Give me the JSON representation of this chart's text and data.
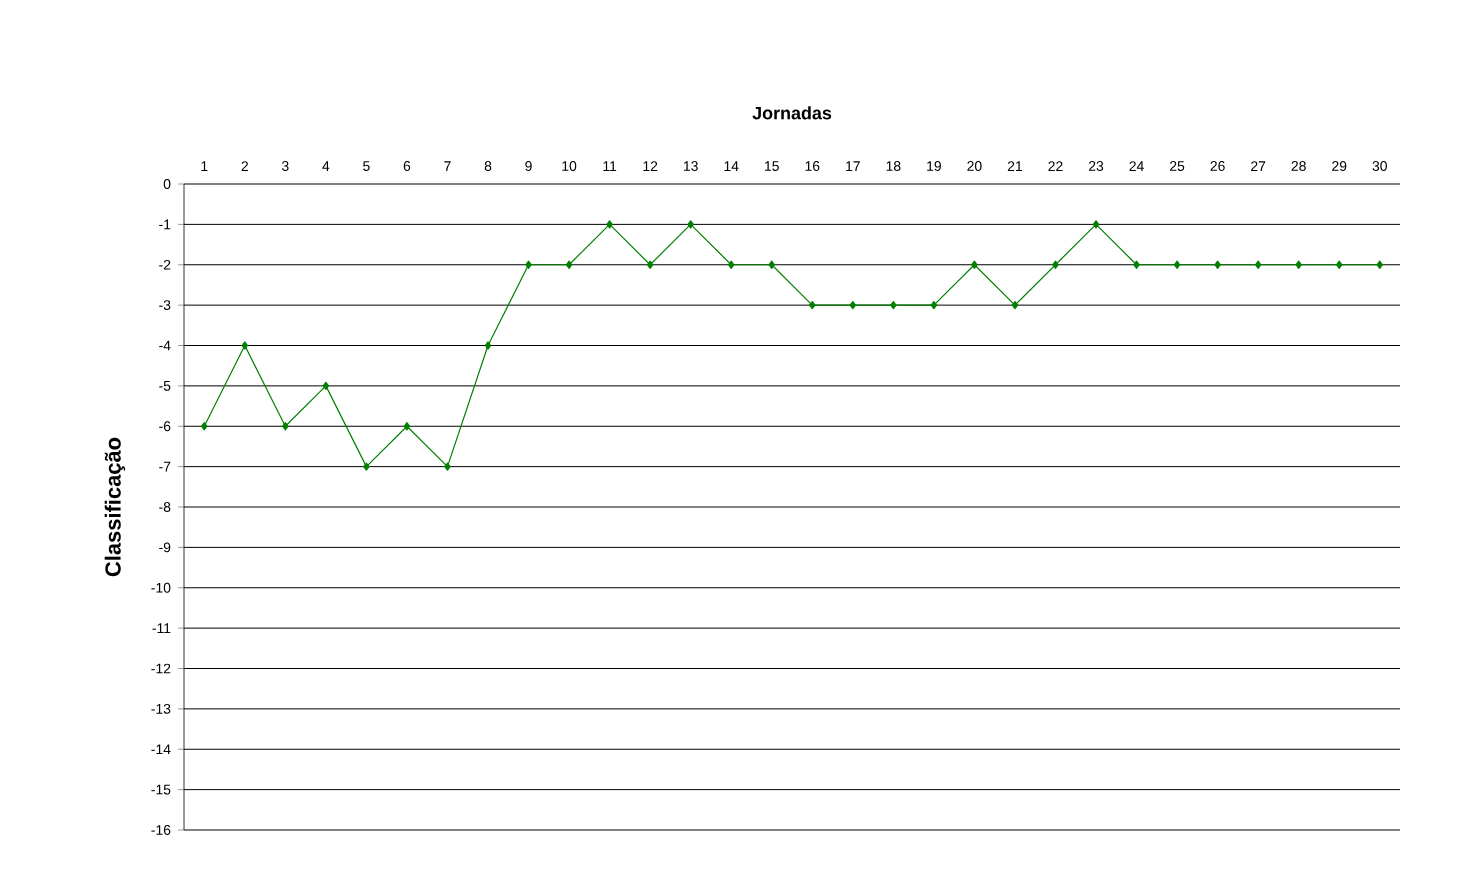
{
  "chart_data": {
    "type": "line",
    "xlabel": "Jornadas",
    "ylabel": "Classificação",
    "categories": [
      "1",
      "2",
      "3",
      "4",
      "5",
      "6",
      "7",
      "8",
      "9",
      "10",
      "11",
      "12",
      "13",
      "14",
      "15",
      "16",
      "17",
      "18",
      "19",
      "20",
      "21",
      "22",
      "23",
      "24",
      "25",
      "26",
      "27",
      "28",
      "29",
      "30"
    ],
    "series": [
      {
        "color": "#008000",
        "values": [
          -6,
          -4,
          -6,
          -5,
          -7,
          -6,
          -7,
          -4,
          -2,
          -2,
          -1,
          -2,
          -1,
          -2,
          -2,
          -3,
          -3,
          -3,
          -3,
          -2,
          -3,
          -2,
          -1,
          -2,
          -2,
          -2,
          -2,
          -2,
          -2,
          -2
        ]
      }
    ],
    "ylim": [
      -16,
      0
    ],
    "yticks": [
      -16,
      -15,
      -14,
      -13,
      -12,
      -11,
      -10,
      -9,
      -8,
      -7,
      -6,
      -5,
      -4,
      -3,
      -2,
      -1,
      0
    ],
    "grid": "y",
    "marker": "diamond",
    "line_style": "solid"
  }
}
